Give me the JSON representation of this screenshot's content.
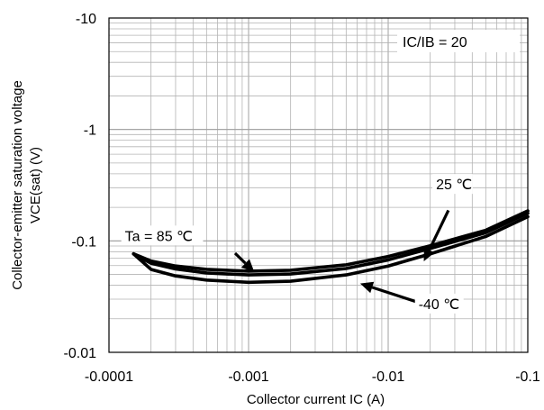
{
  "chart_data": {
    "type": "line",
    "title": "",
    "xlabel": "Collector current IC (A)",
    "ylabel_line1": "Collector-emitter saturation voltage",
    "ylabel_line2": "VCE(sat) (V)",
    "x_scale": "log",
    "y_scale": "log",
    "xlim": [
      -0.0001,
      -0.1
    ],
    "ylim": [
      -0.01,
      -10
    ],
    "x_ticks": [
      {
        "value": -0.0001,
        "label": "-0.0001"
      },
      {
        "value": -0.001,
        "label": "-0.001"
      },
      {
        "value": -0.01,
        "label": "-0.01"
      },
      {
        "value": -0.1,
        "label": "-0.1"
      }
    ],
    "y_ticks": [
      {
        "value": -0.01,
        "label": "-0.01"
      },
      {
        "value": -0.1,
        "label": "-0.1"
      },
      {
        "value": -1,
        "label": "-1"
      },
      {
        "value": -10,
        "label": "-10"
      }
    ],
    "grid": true,
    "series": [
      {
        "name": "Ta = 85 °C",
        "x": [
          -0.00015,
          -0.0002,
          -0.0003,
          -0.0005,
          -0.001,
          -0.002,
          -0.005,
          -0.01,
          -0.02,
          -0.05,
          -0.1
        ],
        "y": [
          -0.0765,
          -0.063,
          -0.056,
          -0.0515,
          -0.0495,
          -0.0505,
          -0.0565,
          -0.0675,
          -0.0855,
          -0.1185,
          -0.177
        ]
      },
      {
        "name": "25 °C",
        "x": [
          -0.00015,
          -0.0002,
          -0.0003,
          -0.0005,
          -0.001,
          -0.002,
          -0.005,
          -0.01,
          -0.02,
          -0.05,
          -0.1
        ],
        "y": [
          -0.0765,
          -0.066,
          -0.0595,
          -0.0555,
          -0.0535,
          -0.0545,
          -0.061,
          -0.0725,
          -0.0905,
          -0.1245,
          -0.186
        ]
      },
      {
        "name": "-40 °C",
        "x": [
          -0.00015,
          -0.0002,
          -0.0003,
          -0.0005,
          -0.001,
          -0.002,
          -0.005,
          -0.01,
          -0.02,
          -0.05,
          -0.1
        ],
        "y": [
          -0.0765,
          -0.0555,
          -0.0485,
          -0.0445,
          -0.0425,
          -0.0435,
          -0.0495,
          -0.0595,
          -0.0765,
          -0.1095,
          -0.165
        ]
      }
    ],
    "annotations": [
      {
        "id": "ta85",
        "text": "Ta = 85 ℃",
        "label_at": [
          -0.00013,
          -0.1
        ],
        "arrow_from": [
          -0.0008,
          -0.0775
        ],
        "arrow_to": [
          -0.0011,
          -0.0525
        ]
      },
      {
        "id": "t25",
        "text": "25 ℃",
        "label_at": [
          -0.022,
          -0.29
        ],
        "arrow_from": [
          -0.027,
          -0.188
        ],
        "arrow_to": [
          -0.018,
          -0.0655
        ]
      },
      {
        "id": "tm40",
        "text": "-40 ℃",
        "label_at": [
          -0.0165,
          -0.0245
        ],
        "arrow_from": [
          -0.0165,
          -0.028
        ],
        "arrow_to": [
          -0.0063,
          -0.0415
        ]
      }
    ],
    "legend_box": "IC/IB = 20"
  }
}
